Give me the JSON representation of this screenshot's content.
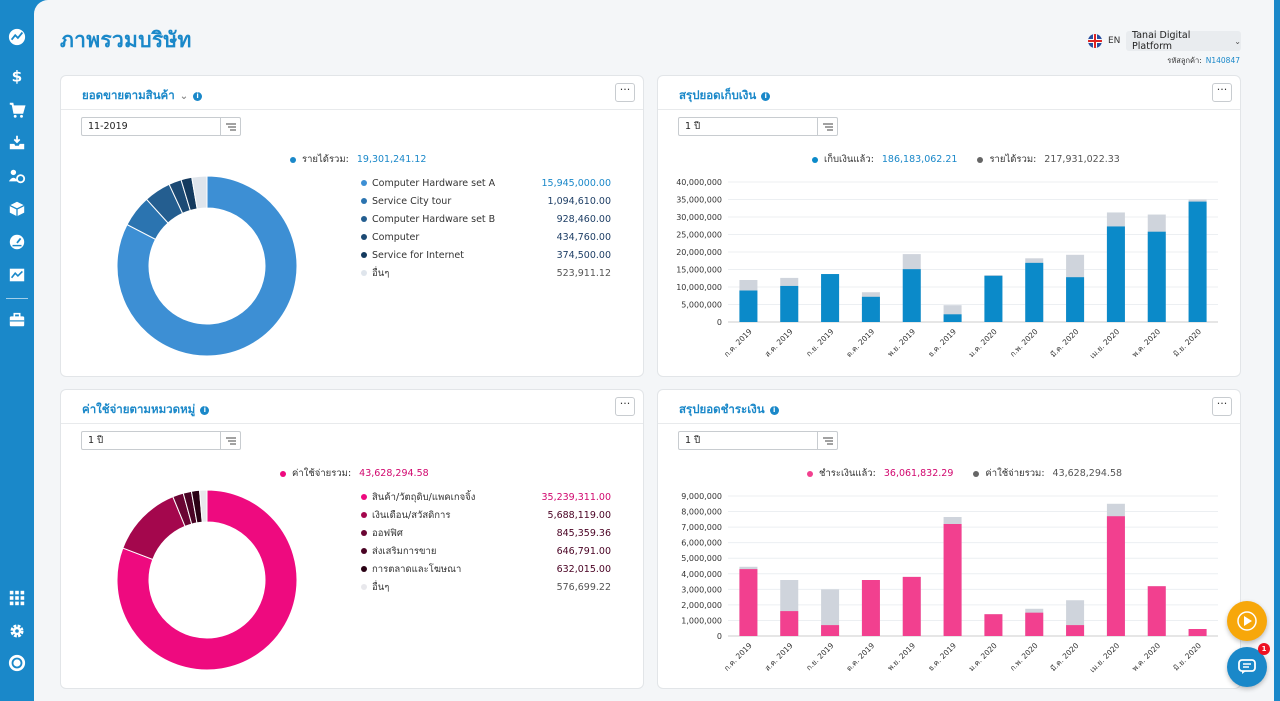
{
  "page": {
    "title": "ภาพรวมบริษัท"
  },
  "header": {
    "lang": "EN",
    "company": "Tanai Digital Platform",
    "customer_id_label": "รหัสลูกค้า:",
    "customer_id": "N140847"
  },
  "sidebar": {
    "items": [
      {
        "name": "dashboard-icon"
      },
      {
        "name": "dollar-icon"
      },
      {
        "name": "cart-icon"
      },
      {
        "name": "inbox-icon"
      },
      {
        "name": "people-icon"
      },
      {
        "name": "box-icon"
      },
      {
        "name": "gauge-icon"
      },
      {
        "name": "chart-icon"
      },
      {
        "name": "briefcase-icon"
      }
    ],
    "bottom": [
      {
        "name": "apps-icon"
      },
      {
        "name": "gear-icon"
      },
      {
        "name": "profile-icon"
      }
    ]
  },
  "colors": {
    "accent": "#1a88c9",
    "pink": "#ee0a7f",
    "grey": "#cfd4dc"
  },
  "sales": {
    "title": "ยอดขายตามสินค้า",
    "filter": "11-2019",
    "total_label": "รายได้รวม:",
    "total_value": "19,301,241.12",
    "items": [
      {
        "label": "Computer Hardware set A",
        "value": "15,945,000.00",
        "amount": 15945000,
        "color": "#3d8fd4"
      },
      {
        "label": "Service City tour",
        "value": "1,094,610.00",
        "amount": 1094610,
        "color": "#2b74b0"
      },
      {
        "label": "Computer Hardware set B",
        "value": "928,460.00",
        "amount": 928460,
        "color": "#245e90"
      },
      {
        "label": "Computer",
        "value": "434,760.00",
        "amount": 434760,
        "color": "#1c4a74"
      },
      {
        "label": "Service for Internet",
        "value": "374,500.00",
        "amount": 374500,
        "color": "#143a5e"
      },
      {
        "label": "อื่นๆ",
        "value": "523,911.12",
        "amount": 523911.12,
        "color": "#dfe5ec"
      }
    ]
  },
  "collection": {
    "title": "สรุปยอดเก็บเงิน",
    "filter": "1 ปี",
    "collected_label": "เก็บเงินแล้ว:",
    "collected_value": "186,183,062.21",
    "revenue_label": "รายได้รวม:",
    "revenue_value": "217,931,022.33"
  },
  "expense": {
    "title": "ค่าใช้จ่ายตามหมวดหมู่",
    "filter": "1 ปี",
    "total_label": "ค่าใช้จ่ายรวม:",
    "total_value": "43,628,294.58",
    "items": [
      {
        "label": "สินค้า/วัตถุดิบ/แพคเกจจิ้ง",
        "value": "35,239,311.00",
        "amount": 35239311,
        "color": "#ee0a7f"
      },
      {
        "label": "เงินเดือน/สวัสดิการ",
        "value": "5,688,119.00",
        "amount": 5688119,
        "color": "#a4074d"
      },
      {
        "label": "ออฟฟิศ",
        "value": "845,359.36",
        "amount": 845359.36,
        "color": "#6a0533"
      },
      {
        "label": "ส่งเสริมการขาย",
        "value": "646,791.00",
        "amount": 646791,
        "color": "#4a0324"
      },
      {
        "label": "การตลาดและโฆษณา",
        "value": "632,015.00",
        "amount": 632015,
        "color": "#2a0114"
      },
      {
        "label": "อื่นๆ",
        "value": "576,699.22",
        "amount": 576699.22,
        "color": "#e8e8ec"
      }
    ]
  },
  "payment": {
    "title": "สรุปยอดชำระเงิน",
    "filter": "1 ปี",
    "paid_label": "ชำระเงินแล้ว:",
    "paid_value": "36,061,832.29",
    "expense_label": "ค่าใช้จ่ายรวม:",
    "expense_value": "43,628,294.58"
  },
  "chart_data": [
    {
      "type": "bar",
      "title": "สรุปยอดเก็บเงิน",
      "categories": [
        "ก.ค. 2019",
        "ส.ค. 2019",
        "ก.ย. 2019",
        "ต.ค. 2019",
        "พ.ย. 2019",
        "ธ.ค. 2019",
        "ม.ค. 2020",
        "ก.พ. 2020",
        "มี.ค. 2020",
        "เม.ย. 2020",
        "พ.ค. 2020",
        "มิ.ย. 2020"
      ],
      "series": [
        {
          "name": "เก็บเงินแล้ว",
          "values": [
            9000000,
            10300000,
            13700000,
            7200000,
            15100000,
            2200000,
            13200000,
            16900000,
            12800000,
            27300000,
            25800000,
            34400000
          ],
          "color": "#0b8ac9"
        },
        {
          "name": "รายได้รวม",
          "values": [
            12000000,
            12600000,
            13700000,
            8500000,
            19400000,
            4800000,
            13400000,
            18200000,
            19200000,
            31300000,
            30700000,
            35000000
          ],
          "color": "#cfd4dc"
        }
      ],
      "stacking": "overlay",
      "ylim": [
        0,
        40000000
      ],
      "yticks": [
        "0",
        "5,000,000",
        "10,000,000",
        "15,000,000",
        "20,000,000",
        "25,000,000",
        "30,000,000",
        "35,000,000",
        "40,000,000"
      ],
      "grid": true,
      "legend": "top"
    },
    {
      "type": "bar",
      "title": "สรุปยอดชำระเงิน",
      "categories": [
        "ก.ค. 2019",
        "ส.ค. 2019",
        "ก.ย. 2019",
        "ต.ค. 2019",
        "พ.ย. 2019",
        "ธ.ค. 2019",
        "ม.ค. 2020",
        "ก.พ. 2020",
        "มี.ค. 2020",
        "เม.ย. 2020",
        "พ.ค. 2020",
        "มิ.ย. 2020"
      ],
      "series": [
        {
          "name": "ชำระเงินแล้ว",
          "values": [
            4300000,
            1600000,
            700000,
            3600000,
            3800000,
            7200000,
            1400000,
            1500000,
            700000,
            7700000,
            3200000,
            450000
          ],
          "color": "#f2408f"
        },
        {
          "name": "ค่าใช้จ่ายรวม",
          "values": [
            4450000,
            3600000,
            3000000,
            3600000,
            3800000,
            7650000,
            1400000,
            1750000,
            2300000,
            8500000,
            3200000,
            450000
          ],
          "color": "#cfd4dc"
        }
      ],
      "stacking": "overlay",
      "ylim": [
        0,
        9000000
      ],
      "yticks": [
        "0",
        "1,000,000",
        "2,000,000",
        "3,000,000",
        "4,000,000",
        "5,000,000",
        "6,000,000",
        "7,000,000",
        "8,000,000",
        "9,000,000"
      ],
      "grid": true,
      "legend": "top"
    }
  ]
}
